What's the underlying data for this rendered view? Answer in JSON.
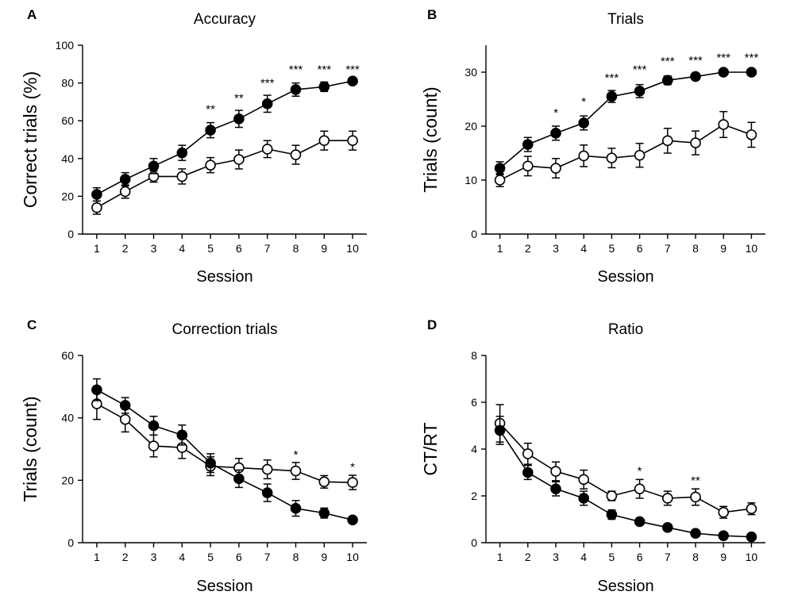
{
  "chart_data": [
    {
      "type": "line",
      "panel_letter": "A",
      "title": "Accuracy",
      "xlabel": "Session",
      "ylabel": "Correct trials (%)",
      "xlim": [
        0.5,
        10.5
      ],
      "ylim": [
        0,
        100
      ],
      "x": [
        1,
        2,
        3,
        4,
        5,
        6,
        7,
        8,
        9,
        10
      ],
      "x_tick_labels": [
        "1",
        "2",
        "3",
        "4",
        "5",
        "6",
        "7",
        "8",
        "9",
        "10"
      ],
      "y_ticks": [
        0,
        20,
        40,
        60,
        80,
        100
      ],
      "y_tick_labels": [
        "0",
        "20",
        "40",
        "60",
        "80",
        "100"
      ],
      "grid": false,
      "series": [
        {
          "name": "filled",
          "marker": "filled-circle",
          "color": "#000000",
          "values": [
            21,
            29,
            36,
            43,
            55,
            61,
            69,
            76.5,
            78,
            81
          ],
          "errors": [
            3.5,
            3.5,
            4,
            4,
            4,
            4.5,
            4.5,
            3.5,
            2.5,
            1.5
          ]
        },
        {
          "name": "open",
          "marker": "open-circle",
          "color": "#000000",
          "values": [
            14,
            22.5,
            30.5,
            30.5,
            36.5,
            39.5,
            45,
            42,
            49.5,
            49.5
          ],
          "errors": [
            3.5,
            3.5,
            3,
            4,
            4,
            5,
            4.5,
            5,
            5,
            5
          ]
        }
      ],
      "annotations": [
        {
          "x": 5,
          "y": 64,
          "text": "**"
        },
        {
          "x": 6,
          "y": 70,
          "text": "**"
        },
        {
          "x": 7,
          "y": 78,
          "text": "***"
        },
        {
          "x": 8,
          "y": 85,
          "text": "***"
        },
        {
          "x": 9,
          "y": 85,
          "text": "***"
        },
        {
          "x": 10,
          "y": 85,
          "text": "***"
        }
      ]
    },
    {
      "type": "line",
      "panel_letter": "B",
      "title": "Trials",
      "xlabel": "Session",
      "ylabel": "Trials (count)",
      "xlim": [
        0.5,
        10.5
      ],
      "ylim": [
        0,
        35
      ],
      "x": [
        1,
        2,
        3,
        4,
        5,
        6,
        7,
        8,
        9,
        10
      ],
      "x_tick_labels": [
        "1",
        "2",
        "3",
        "4",
        "5",
        "6",
        "7",
        "8",
        "9",
        "10"
      ],
      "y_ticks": [
        0,
        10,
        20,
        30
      ],
      "y_tick_labels": [
        "0",
        "10",
        "20",
        "30"
      ],
      "grid": false,
      "series": [
        {
          "name": "filled",
          "marker": "filled-circle",
          "color": "#000000",
          "values": [
            12.2,
            16.6,
            18.7,
            20.6,
            25.5,
            26.5,
            28.5,
            29.2,
            30,
            30
          ],
          "errors": [
            1.2,
            1.3,
            1.3,
            1.3,
            1.1,
            1.2,
            0.8,
            0.4,
            0.3,
            0.3
          ]
        },
        {
          "name": "open",
          "marker": "open-circle",
          "color": "#000000",
          "values": [
            10,
            12.6,
            12.2,
            14.5,
            14.1,
            14.6,
            17.3,
            16.9,
            20.3,
            18.4
          ],
          "errors": [
            1.2,
            1.8,
            1.8,
            2,
            1.8,
            2.2,
            2.3,
            2.2,
            2.4,
            2.3
          ]
        }
      ],
      "annotations": [
        {
          "x": 3,
          "y": 21.8,
          "text": "*"
        },
        {
          "x": 4,
          "y": 23.8,
          "text": "*"
        },
        {
          "x": 5,
          "y": 28.2,
          "text": "***"
        },
        {
          "x": 6,
          "y": 29.8,
          "text": "***"
        },
        {
          "x": 7,
          "y": 31.3,
          "text": "***"
        },
        {
          "x": 8,
          "y": 31.5,
          "text": "***"
        },
        {
          "x": 9,
          "y": 32,
          "text": "***"
        },
        {
          "x": 10,
          "y": 32,
          "text": "***"
        }
      ]
    },
    {
      "type": "line",
      "panel_letter": "C",
      "title": "Correction trials",
      "xlabel": "Session",
      "ylabel": "Trials (count)",
      "xlim": [
        0.5,
        10.5
      ],
      "ylim": [
        0,
        60
      ],
      "x": [
        1,
        2,
        3,
        4,
        5,
        6,
        7,
        8,
        9,
        10
      ],
      "x_tick_labels": [
        "1",
        "2",
        "3",
        "4",
        "5",
        "6",
        "7",
        "8",
        "9",
        "10"
      ],
      "y_ticks": [
        0,
        20,
        40,
        60
      ],
      "y_tick_labels": [
        "0",
        "20",
        "40",
        "60"
      ],
      "grid": false,
      "series": [
        {
          "name": "filled",
          "marker": "filled-circle",
          "color": "#000000",
          "values": [
            49,
            44,
            37.5,
            34.5,
            25.5,
            20.5,
            16,
            11,
            9.5,
            7.3
          ],
          "errors": [
            3.5,
            2.5,
            3,
            3.2,
            3,
            2.8,
            2.8,
            2.5,
            1.6,
            1
          ]
        },
        {
          "name": "open",
          "marker": "open-circle",
          "color": "#000000",
          "values": [
            44.5,
            39.5,
            31,
            30.5,
            24.5,
            24,
            23.5,
            23,
            19.5,
            19.3
          ],
          "errors": [
            5,
            4,
            3.5,
            3.5,
            3,
            3,
            3,
            2.7,
            2,
            2.3
          ]
        }
      ],
      "annotations": [
        {
          "x": 8,
          "y": 27,
          "text": "*"
        },
        {
          "x": 10,
          "y": 23,
          "text": "*"
        }
      ]
    },
    {
      "type": "line",
      "panel_letter": "D",
      "title": "Ratio",
      "xlabel": "Session",
      "ylabel": "CT/RT",
      "xlim": [
        0.5,
        10.5
      ],
      "ylim": [
        0,
        8
      ],
      "x": [
        1,
        2,
        3,
        4,
        5,
        6,
        7,
        8,
        9,
        10
      ],
      "x_tick_labels": [
        "1",
        "2",
        "3",
        "4",
        "5",
        "6",
        "7",
        "8",
        "9",
        "10"
      ],
      "y_ticks": [
        0,
        2,
        4,
        6,
        8
      ],
      "y_tick_labels": [
        "0",
        "2",
        "4",
        "6",
        "8"
      ],
      "grid": false,
      "series": [
        {
          "name": "filled",
          "marker": "filled-circle",
          "color": "#000000",
          "values": [
            4.8,
            3,
            2.3,
            1.9,
            1.2,
            0.9,
            0.65,
            0.4,
            0.3,
            0.25
          ],
          "errors": [
            0.6,
            0.3,
            0.3,
            0.3,
            0.2,
            0.1,
            0.08,
            0.07,
            0.06,
            0.05
          ]
        },
        {
          "name": "open",
          "marker": "open-circle",
          "color": "#000000",
          "values": [
            5.1,
            3.8,
            3.05,
            2.7,
            2,
            2.3,
            1.9,
            1.95,
            1.3,
            1.45
          ],
          "errors": [
            0.8,
            0.45,
            0.4,
            0.4,
            0.2,
            0.4,
            0.3,
            0.35,
            0.25,
            0.25
          ]
        }
      ],
      "annotations": [
        {
          "x": 6,
          "y": 2.9,
          "text": "*"
        },
        {
          "x": 8,
          "y": 2.5,
          "text": "**"
        }
      ]
    }
  ]
}
